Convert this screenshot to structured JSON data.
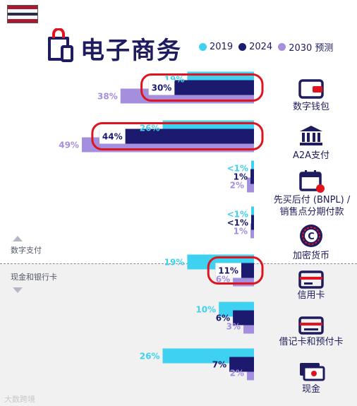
{
  "header": {
    "title": "电子商务"
  },
  "colors": {
    "s2019": "#3ed2f0",
    "s2024": "#1c1a6e",
    "s2030": "#a48fdf",
    "highlight": "#e0141e",
    "navy": "#1e1b5e"
  },
  "groups": {
    "digital": "数字支付",
    "cash_card": "现金和银行卡"
  },
  "watermark": "大数跨境",
  "chart_data": {
    "type": "bar",
    "orientation": "horizontal",
    "title": "电子商务",
    "unit": "%",
    "categories": [
      "数字钱包",
      "A2A支付",
      "先买后付 (BNPL) / 销售点分期付款",
      "加密货币",
      "信用卡",
      "借记卡和预付卡",
      "现金"
    ],
    "icons": [
      "wallet-icon",
      "bank-icon",
      "calendar-icon",
      "crypto-coin-icon",
      "credit-card-icon",
      "debit-card-icon",
      "cash-icon"
    ],
    "series": [
      {
        "name": "2019",
        "values": [
          19,
          26,
          0.5,
          0.5,
          19,
          10,
          26
        ],
        "labels": [
          "19%",
          "26%",
          "<1%",
          "<1%",
          "19%",
          "10%",
          "26%"
        ]
      },
      {
        "name": "2024",
        "values": [
          30,
          44,
          1,
          0.5,
          11,
          6,
          7
        ],
        "labels": [
          "30%",
          "44%",
          "1%",
          "<1%",
          "11%",
          "6%",
          "7%"
        ]
      },
      {
        "name": "2030 预测",
        "values": [
          38,
          49,
          2,
          1,
          6,
          3,
          2
        ],
        "labels": [
          "38%",
          "49%",
          "2%",
          "1%",
          "6%",
          "3%",
          "2%"
        ]
      }
    ],
    "highlighted_2024": [
      0,
      1,
      4
    ],
    "legend_position": "top-right",
    "grid": false
  }
}
